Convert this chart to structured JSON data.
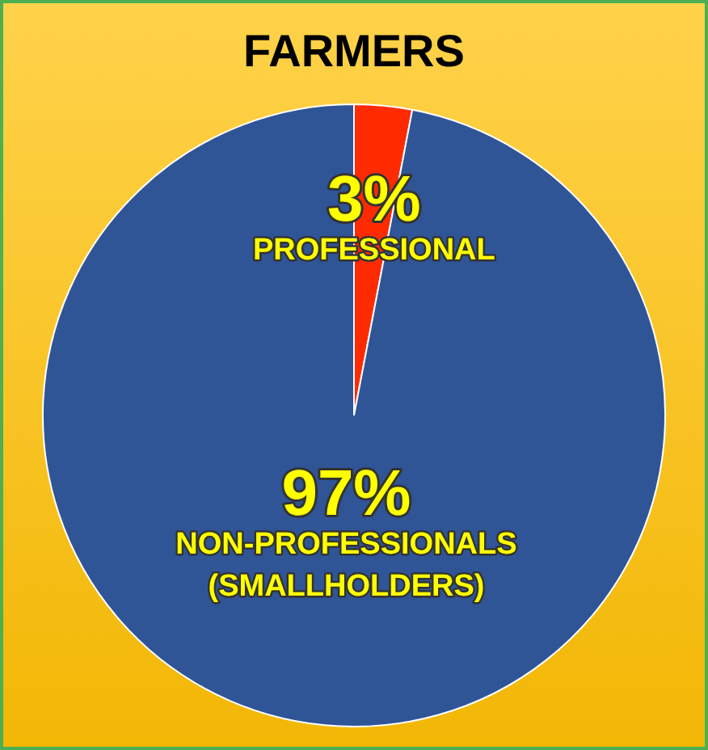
{
  "chart_data": {
    "type": "pie",
    "title": "FARMERS",
    "categories": [
      "PROFESSIONAL",
      "NON-PROFESSIONALS (SMALLHOLDERS)"
    ],
    "values": [
      3,
      97
    ],
    "colors": [
      "#ff2b00",
      "#2f5597"
    ],
    "value_labels": [
      "3%",
      "97%"
    ],
    "legend": false
  }
}
